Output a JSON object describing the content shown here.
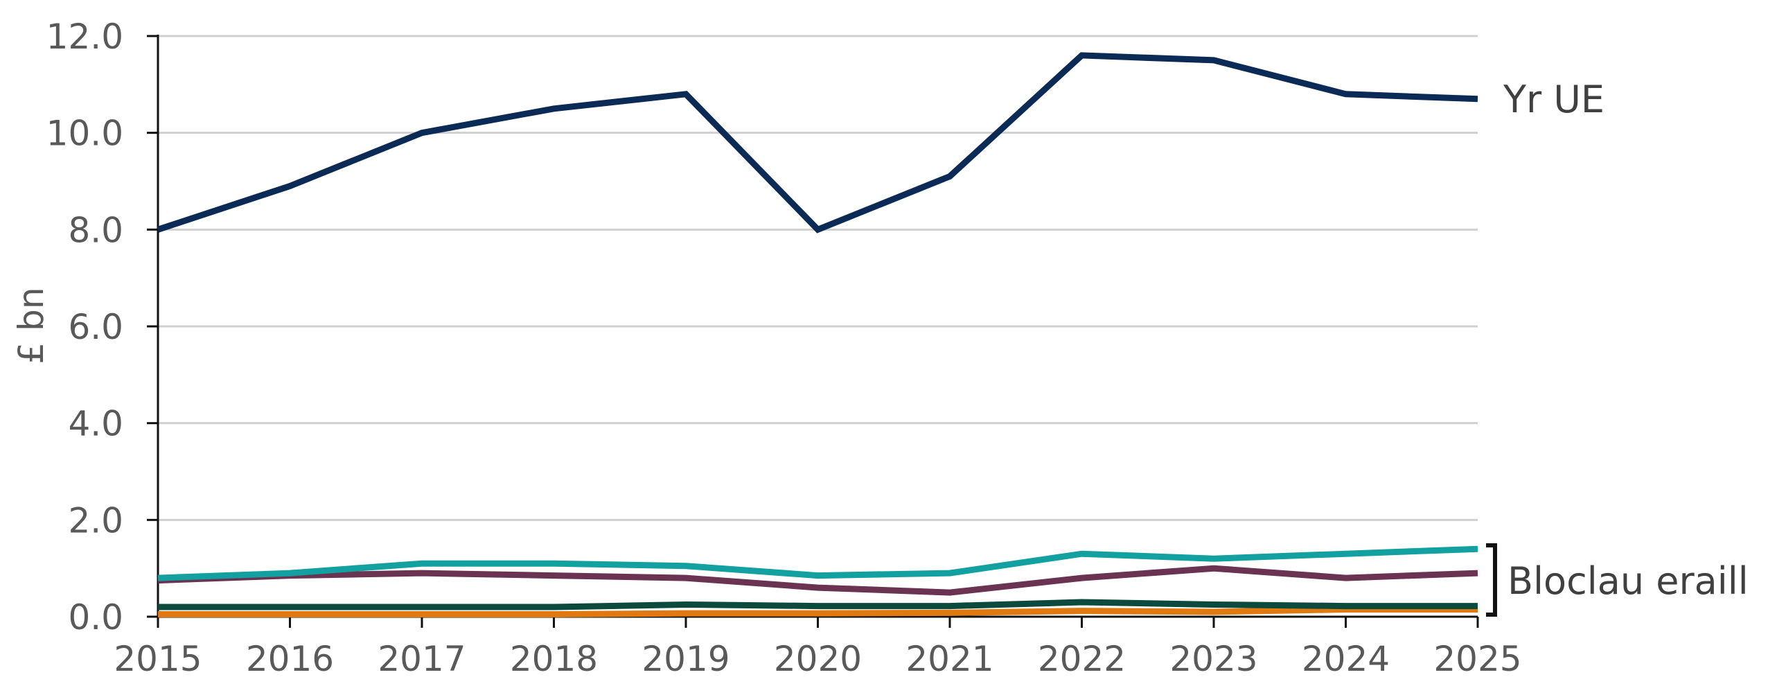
{
  "chart_data": {
    "type": "line",
    "title": "",
    "xlabel": "",
    "ylabel": "£ bn",
    "ylim": [
      0,
      12
    ],
    "y_ticks": [
      "0.0",
      "2.0",
      "4.0",
      "6.0",
      "8.0",
      "10.0",
      "12.0"
    ],
    "y_tick_values": [
      0,
      2,
      4,
      6,
      8,
      10,
      12
    ],
    "categories": [
      "2015",
      "2016",
      "2017",
      "2018",
      "2019",
      "2020",
      "2021",
      "2022",
      "2023",
      "2024",
      "2025"
    ],
    "grid": "horizontal",
    "legend": "none",
    "series": [
      {
        "id": "eu",
        "name": "Yr UE",
        "color": "#0b2a55",
        "values": [
          8.0,
          8.9,
          10.0,
          10.5,
          10.8,
          8.0,
          9.1,
          11.6,
          11.5,
          10.8,
          10.7
        ]
      },
      {
        "id": "teal",
        "color": "#12a0a0",
        "values": [
          0.8,
          0.9,
          1.1,
          1.1,
          1.05,
          0.85,
          0.9,
          1.3,
          1.2,
          1.3,
          1.4
        ]
      },
      {
        "id": "plum",
        "color": "#6b3352",
        "values": [
          0.75,
          0.85,
          0.9,
          0.85,
          0.8,
          0.6,
          0.5,
          0.8,
          1.0,
          0.8,
          0.9
        ]
      },
      {
        "id": "darkgreen",
        "color": "#0d4a3e",
        "values": [
          0.2,
          0.2,
          0.2,
          0.2,
          0.25,
          0.22,
          0.22,
          0.3,
          0.25,
          0.22,
          0.22
        ]
      },
      {
        "id": "orange",
        "color": "#e07a10",
        "values": [
          0.05,
          0.05,
          0.05,
          0.05,
          0.07,
          0.07,
          0.08,
          0.12,
          0.1,
          0.15,
          0.15
        ]
      }
    ],
    "annotations": {
      "eu_label": "Yr UE",
      "group_label": "Bloclau eraill"
    }
  }
}
